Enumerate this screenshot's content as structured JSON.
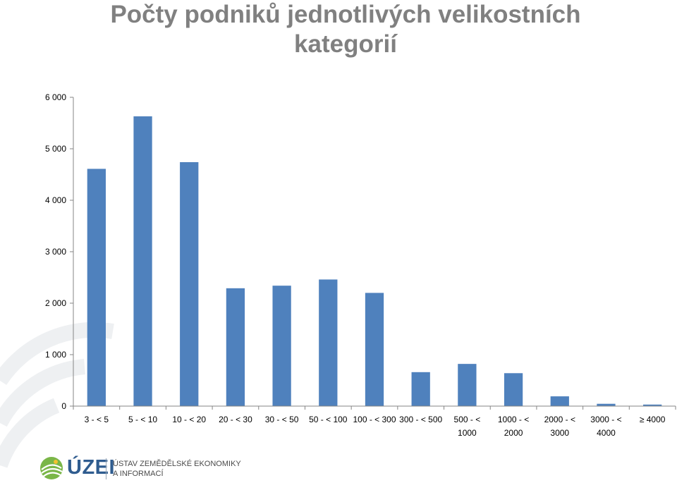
{
  "title_lines": [
    "Počty podniků jednotlivých velikostních",
    "kategorií"
  ],
  "colors": {
    "bar": "#4f81bd",
    "title": "#808080",
    "axis": "#868686",
    "logo_blue": "#2f5c8f",
    "logo_green": "#7ab648"
  },
  "footer": {
    "logo": "ÚZEI",
    "institution_line1": "ÚSTAV ZEMĚDĚLSKÉ EKONOMIKY",
    "institution_line2": "A INFORMACÍ"
  },
  "chart_data": {
    "type": "bar",
    "title": "Počty podniků jednotlivých velikostních kategorií",
    "xlabel": "",
    "ylabel": "",
    "categories": [
      [
        "3 - < 5"
      ],
      [
        "5 - < 10"
      ],
      [
        "10 - < 20"
      ],
      [
        "20 - < 30"
      ],
      [
        "30 - < 50"
      ],
      [
        "50 - < 100"
      ],
      [
        "100 - < 300"
      ],
      [
        "300 - < 500"
      ],
      [
        "500 - <",
        "1000"
      ],
      [
        "1000 - <",
        "2000"
      ],
      [
        "2000 - <",
        "3000"
      ],
      [
        "3000 - <",
        "4000"
      ],
      [
        "≥ 4000"
      ]
    ],
    "values": [
      4610,
      5630,
      4740,
      2290,
      2340,
      2460,
      2200,
      660,
      820,
      640,
      190,
      45,
      30
    ],
    "ylim": [
      0,
      6000
    ],
    "yticks": [
      0,
      1000,
      2000,
      3000,
      4000,
      5000,
      6000
    ],
    "ytick_labels": [
      "0",
      "1 000",
      "2 000",
      "3 000",
      "4 000",
      "5 000",
      "6 000"
    ],
    "grid": false,
    "legend": "none"
  }
}
